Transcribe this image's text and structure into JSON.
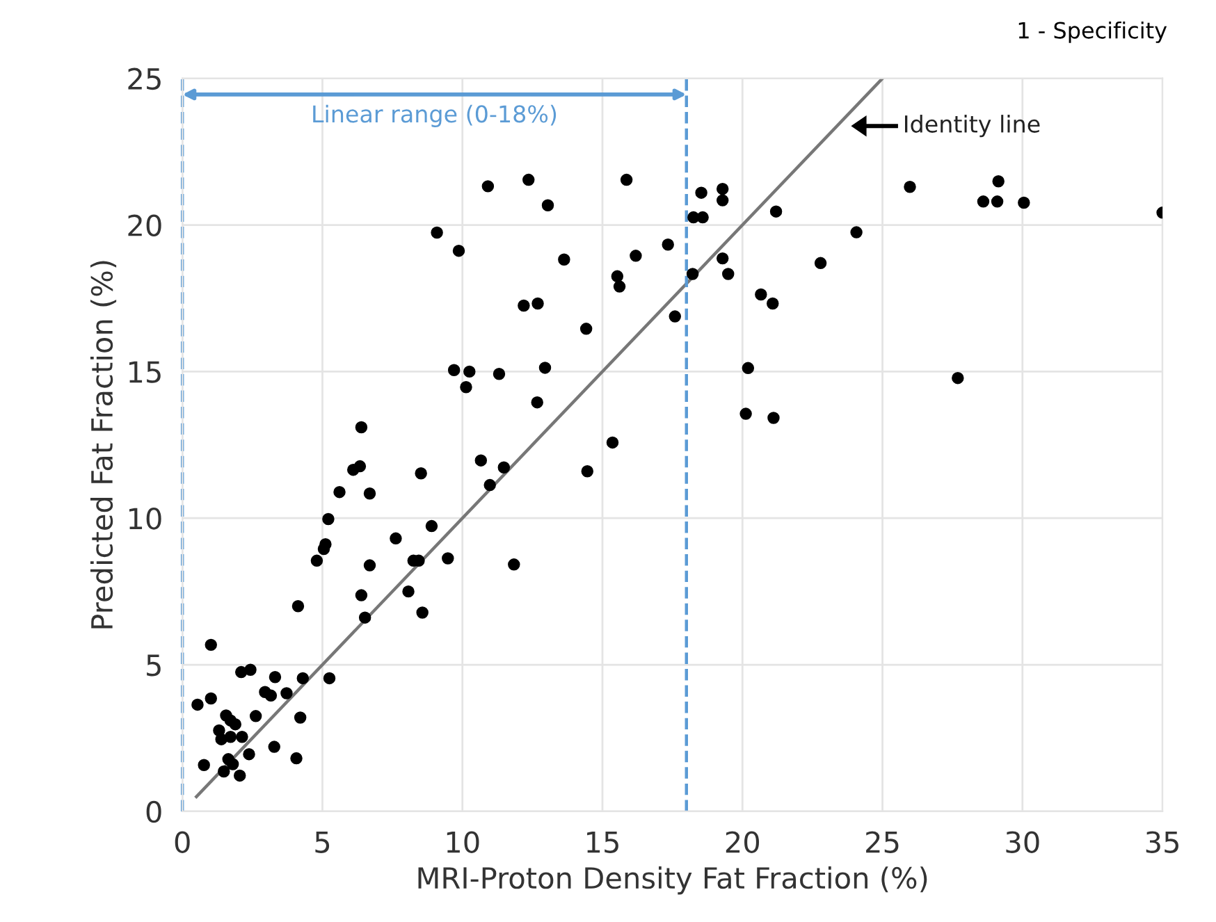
{
  "chart_data": {
    "type": "scatter",
    "xlabel": "MRI-Proton Density Fat Fraction (%)",
    "ylabel": "Predicted Fat Fraction (%)",
    "xlim": [
      0,
      35
    ],
    "ylim": [
      0,
      25
    ],
    "xticks": [
      0,
      5,
      10,
      15,
      20,
      25,
      30,
      35
    ],
    "yticks": [
      0,
      5,
      10,
      15,
      20,
      25
    ],
    "grid": true,
    "marker": "circle",
    "series": [
      {
        "color": "#000000",
        "x": [
          1.02,
          4.13,
          6.39,
          6.52,
          8.07,
          8.57,
          2.1,
          2.43,
          3.31,
          4.3,
          5.25,
          0.54,
          1.02,
          2.95,
          3.16,
          3.72,
          1.56,
          1.72,
          2.62,
          4.21,
          1.31,
          1.89,
          1.39,
          1.72,
          2.13,
          2.38,
          3.28,
          4.07,
          0.77,
          1.48,
          1.8,
          2.05,
          1.64,
          9.7,
          10.25,
          10.13,
          11.31,
          12.95,
          12.67,
          6.39,
          6.1,
          6.34,
          5.61,
          6.69,
          8.52,
          10.66,
          11.48,
          10.98,
          5.21,
          5.11,
          5.05,
          4.8,
          7.62,
          8.9,
          6.69,
          8.25,
          8.44,
          9.48,
          11.84,
          10.91,
          12.36,
          13.05,
          15.86,
          18.53,
          19.29,
          19.29,
          18.25,
          18.58,
          9.09,
          9.87,
          13.63,
          16.19,
          17.34,
          15.53,
          15.61,
          19.29,
          19.49,
          18.22,
          12.19,
          12.69,
          17.59,
          14.42,
          15.36,
          14.46,
          25.98,
          29.14,
          28.6,
          29.1,
          30.05,
          35.0,
          21.2,
          24.07,
          22.79,
          20.66,
          21.08,
          20.2,
          20.12,
          21.11,
          27.69
        ],
        "values": [
          5.68,
          7.0,
          7.37,
          6.61,
          7.5,
          6.78,
          4.75,
          4.83,
          4.58,
          4.54,
          4.54,
          3.64,
          3.85,
          4.07,
          3.95,
          4.03,
          3.27,
          3.1,
          3.25,
          3.2,
          2.76,
          2.97,
          2.46,
          2.54,
          2.54,
          1.95,
          2.2,
          1.81,
          1.58,
          1.36,
          1.61,
          1.22,
          1.78,
          15.05,
          15.0,
          14.47,
          14.92,
          15.13,
          13.95,
          13.1,
          11.65,
          11.77,
          10.89,
          10.84,
          11.53,
          11.97,
          11.73,
          11.13,
          9.97,
          9.11,
          8.95,
          8.55,
          9.31,
          9.73,
          8.39,
          8.55,
          8.55,
          8.63,
          8.42,
          21.32,
          21.54,
          20.67,
          21.54,
          21.1,
          21.23,
          20.84,
          20.26,
          20.26,
          19.74,
          19.12,
          18.82,
          18.95,
          19.33,
          18.25,
          17.9,
          18.86,
          18.33,
          18.33,
          17.25,
          17.32,
          16.88,
          16.46,
          12.58,
          11.6,
          21.3,
          21.49,
          20.8,
          20.8,
          20.76,
          20.42,
          20.46,
          19.75,
          18.7,
          17.63,
          17.32,
          15.12,
          13.56,
          13.42,
          14.78
        ]
      },
      {
        "type": "line",
        "marker": "none",
        "color": "#777777",
        "x": [
          0.5,
          25
        ],
        "values": [
          0.5,
          25
        ]
      }
    ],
    "ref_lines": [
      {
        "axis": "x",
        "value": 0,
        "label": null,
        "color": "#5b9bd5",
        "line_style": "dashed"
      },
      {
        "axis": "x",
        "value": 18,
        "label": null,
        "color": "#5b9bd5",
        "line_style": "dashed"
      }
    ],
    "annotations": [
      "Identity line",
      "Linear range (0-18%)",
      "1 - Specificity"
    ]
  }
}
